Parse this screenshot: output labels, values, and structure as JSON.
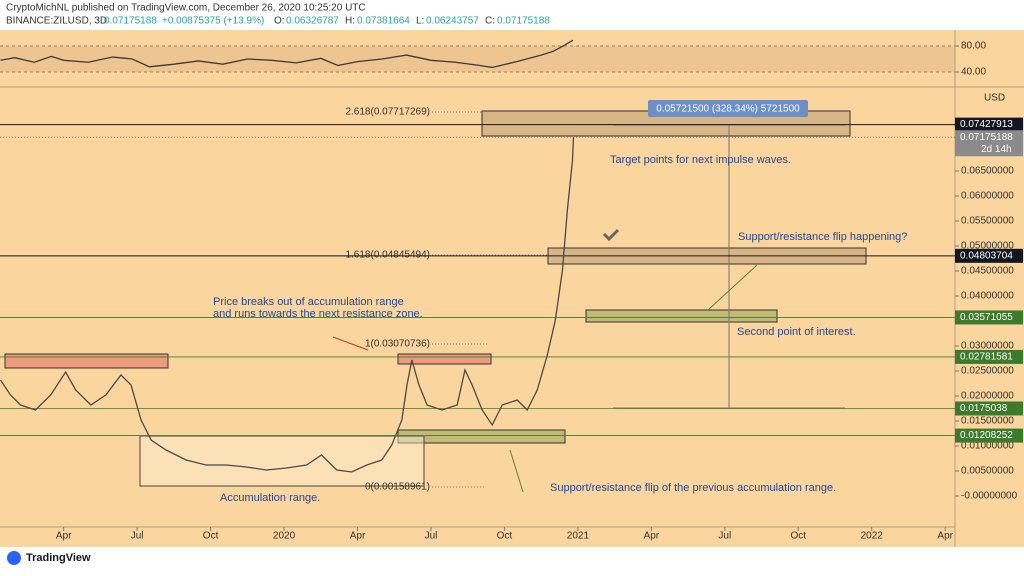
{
  "header": {
    "publisher": "CryptoMichNL published on TradingView.com, December 26, 2020 10:25:20 UTC",
    "symbol": "BINANCE:ZILUSD, 3D",
    "price": "0.07175188",
    "change": "+0.00875375 (+13.9%)",
    "o_label": "O:",
    "o": "0.06326787",
    "h_label": "H:",
    "h": "0.07381664",
    "l_label": "L:",
    "l": "0.06243757",
    "c_label": "C:",
    "c": "0.07175188"
  },
  "footer": {
    "brand": "TradingView"
  },
  "annotations": {
    "currency": "USD",
    "measure": "0.05721500 (328.34%) 5721500",
    "target": "Target points for next impulse waves.",
    "flip": "Support/resistance flip happening?",
    "second": "Second point of interest.",
    "breakout_1": "Price breaks out of accumulation range",
    "breakout_2": "and runs towards the next resistance zone.",
    "accumulation": "Accumulation range.",
    "flip_prev": "Support/resistance flip of the previous accumulation range.",
    "fib_2618": "2.618(0.07717269)",
    "fib_1618": "1.618(0.04845494)",
    "fib_1": "1(0.03070736)",
    "fib_0": "0(0.00158961)"
  },
  "chart_data": [
    {
      "type": "line",
      "name": "ZILUSD",
      "x": [
        0.42,
        0.83,
        1.24,
        1.85,
        2.47,
        3.08,
        3.49,
        4.11,
        4.72,
        5.34,
        5.75,
        6.16,
        6.57,
        7.18,
        8.0,
        8.82,
        9.64,
        10.46,
        11.28,
        12.1,
        12.92,
        13.53,
        14.15,
        14.76,
        15.38,
        15.99,
        16.4,
        16.81,
        17.02,
        17.22,
        17.51,
        17.84,
        18.45,
        19.07,
        19.39,
        19.68,
        20.09,
        20.5,
        20.91,
        21.52,
        21.93,
        22.34,
        22.75,
        23.08,
        23.37,
        23.57,
        23.78,
        23.82
      ],
      "values": [
        0.0232,
        0.0202,
        0.0182,
        0.0172,
        0.0202,
        0.0248,
        0.0212,
        0.0182,
        0.0202,
        0.0242,
        0.0222,
        0.0152,
        0.0112,
        0.0092,
        0.0072,
        0.0062,
        0.0062,
        0.0058,
        0.0052,
        0.0056,
        0.0062,
        0.0082,
        0.0052,
        0.0048,
        0.0062,
        0.0072,
        0.0102,
        0.0152,
        0.0222,
        0.0272,
        0.0222,
        0.0182,
        0.0172,
        0.0182,
        0.0252,
        0.0222,
        0.0172,
        0.0142,
        0.0182,
        0.0192,
        0.0172,
        0.0212,
        0.0282,
        0.0352,
        0.0452,
        0.0572,
        0.0672,
        0.0718
      ],
      "color": "#4a4a4a",
      "xlim": [
        0.4,
        39.4
      ],
      "xticks": [
        {
          "value": 3,
          "label": "Apr"
        },
        {
          "value": 6,
          "label": "Jul"
        },
        {
          "value": 9,
          "label": "Oct"
        },
        {
          "value": 12,
          "label": "2020"
        },
        {
          "value": 15,
          "label": "Apr"
        },
        {
          "value": 18,
          "label": "Jul"
        },
        {
          "value": 21,
          "label": "Oct"
        },
        {
          "value": 24,
          "label": "2021"
        },
        {
          "value": 27,
          "label": "Apr"
        },
        {
          "value": 30,
          "label": "Jul"
        },
        {
          "value": 33,
          "label": "Oct"
        },
        {
          "value": 36,
          "label": "2022"
        },
        {
          "value": 39,
          "label": "Apr"
        }
      ],
      "ylim": [
        -0.0062,
        0.0816
      ],
      "yticks": [
        {
          "value": 0,
          "label": "-0.00000000"
        },
        {
          "value": 0.005,
          "label": "0.00500000"
        },
        {
          "value": 0.01,
          "label": "0.01000000"
        },
        {
          "value": 0.015,
          "label": "0.01500000"
        },
        {
          "value": 0.02,
          "label": "0.02000000"
        },
        {
          "value": 0.025,
          "label": "0.02500000"
        },
        {
          "value": 0.03,
          "label": "0.03000000"
        },
        {
          "value": 0.04,
          "label": "0.04000000"
        },
        {
          "value": 0.045,
          "label": "0.04500000"
        },
        {
          "value": 0.05,
          "label": "0.05000000"
        },
        {
          "value": 0.055,
          "label": "0.05500000"
        },
        {
          "value": 0.06,
          "label": "0.06000000"
        },
        {
          "value": 0.065,
          "label": "0.06500000"
        }
      ],
      "levels": [
        {
          "value": 0.07427913,
          "color": "#131722"
        },
        {
          "value": 0.04803704,
          "color": "#131722"
        },
        {
          "value": 0.03571055,
          "color": "#3d7a2c"
        },
        {
          "value": 0.02781581,
          "color": "#3d7a2c"
        },
        {
          "value": 0.0175038,
          "color": "#3d7a2c"
        },
        {
          "value": 0.01208252,
          "color": "#3d7a2c"
        }
      ],
      "last": 0.07175188,
      "countdown": "2d 14h"
    },
    {
      "type": "line",
      "name": "RSI",
      "x": [
        0.42,
        1,
        1.8,
        2.5,
        3,
        4,
        5,
        5.8,
        6.5,
        7.5,
        8.5,
        9.5,
        10.5,
        11.5,
        12.5,
        13.5,
        14.2,
        15,
        16,
        17,
        18,
        19,
        20,
        20.5,
        21.5,
        22.5,
        23,
        23.4,
        23.8
      ],
      "values": [
        58,
        62,
        55,
        64,
        58,
        55,
        63,
        60,
        48,
        52,
        57,
        52,
        60,
        58,
        54,
        61,
        50,
        56,
        60,
        66,
        58,
        55,
        50,
        47,
        56,
        66,
        72,
        80,
        89
      ],
      "color": "#3a3a3a",
      "xlim": [
        0.4,
        39.4
      ],
      "ylim": [
        20,
        104.6
      ],
      "yticks": [
        {
          "value": 40,
          "label": "40.00"
        },
        {
          "value": 80,
          "label": "80.00"
        }
      ]
    }
  ]
}
